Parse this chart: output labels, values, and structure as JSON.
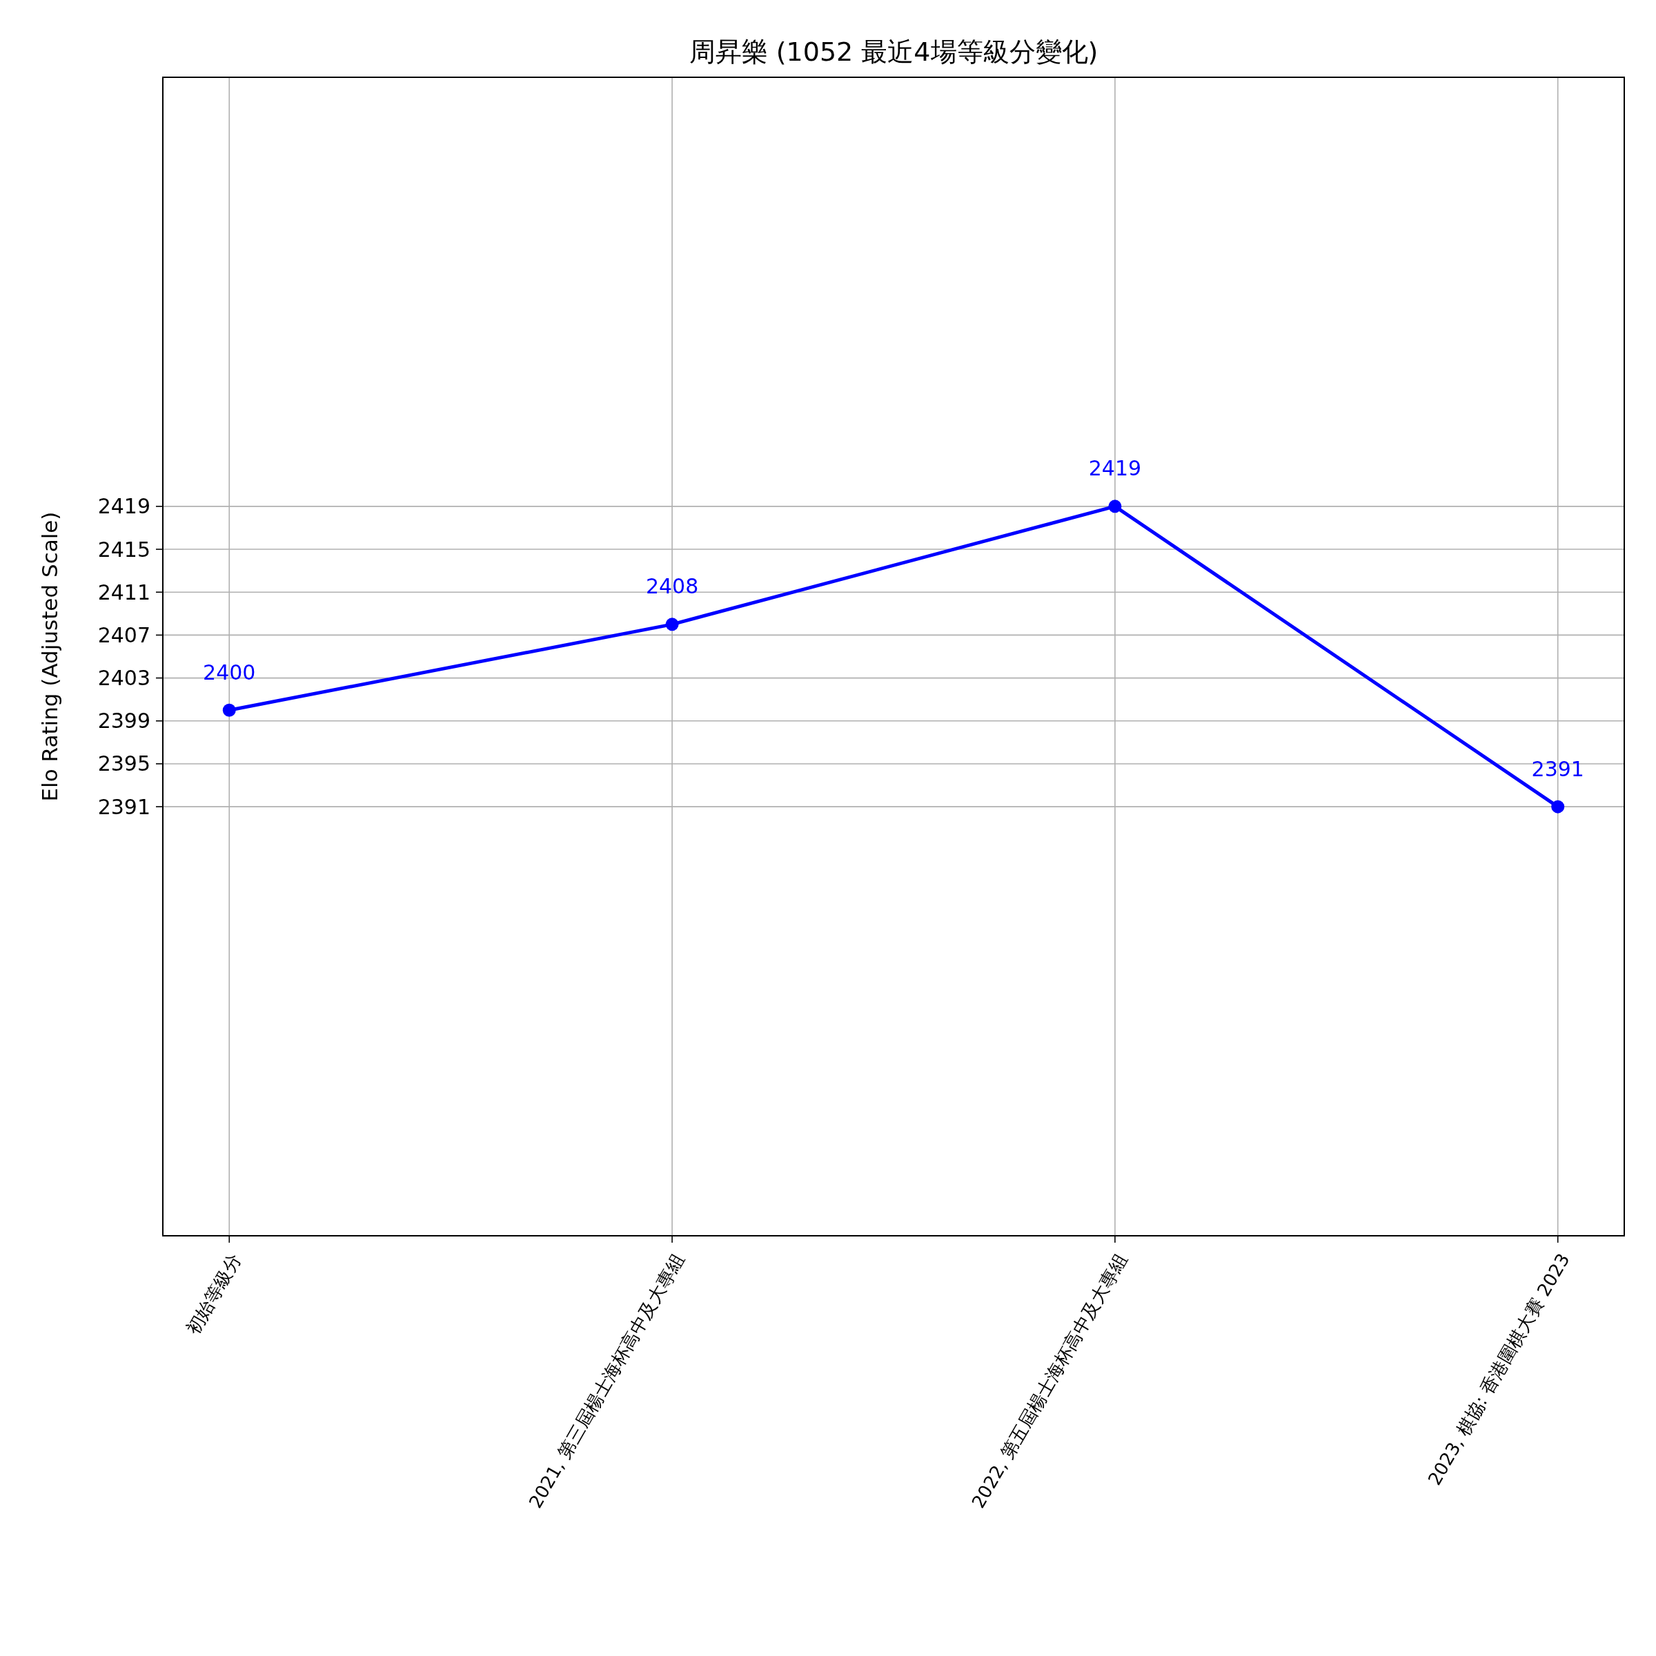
{
  "chart_data": {
    "type": "line",
    "title": "周昇樂 (1052 最近4場等級分變化)",
    "ylabel": "Elo Rating (Adjusted Scale)",
    "categories": [
      "初始等級分",
      "2021, 第三屆楊士海杯高中及大專組",
      "2022, 第五屆楊士海杯高中及大專組",
      "2023, 棋協: 香港圍棋大賽 2023"
    ],
    "series": [
      {
        "color": "#0000ff",
        "values": [
          2400,
          2408,
          2419,
          2391
        ]
      }
    ],
    "ylim": [
      2351,
      2459
    ],
    "yticks": [
      2391,
      2395,
      2399,
      2403,
      2407,
      2411,
      2415,
      2419
    ],
    "grid": true,
    "marker": "circle",
    "line_style": "solid",
    "data_labels": true
  }
}
